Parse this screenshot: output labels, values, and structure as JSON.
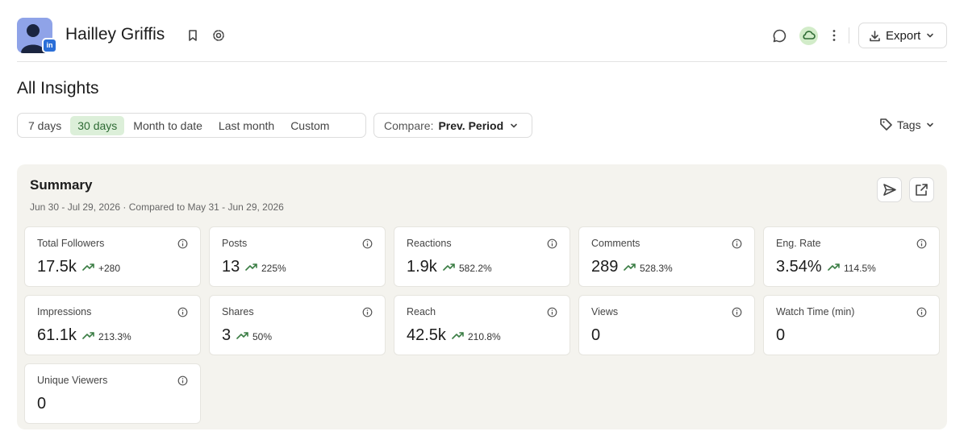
{
  "header": {
    "name": "Hailley Griffis",
    "export_label": "Export"
  },
  "page": {
    "title": "All Insights"
  },
  "filters": {
    "periods": [
      "7 days",
      "30 days",
      "Month to date",
      "Last month",
      "Custom"
    ],
    "selected": 1,
    "compare_label": "Compare:",
    "compare_value": "Prev. Period",
    "tags_label": "Tags"
  },
  "summary": {
    "title": "Summary",
    "date_range": "Jun 30 - Jul 29, 2026 · Compared to May 31 - Jun 29, 2026",
    "metrics": [
      {
        "label": "Total Followers",
        "value": "17.5k",
        "change": "+280"
      },
      {
        "label": "Posts",
        "value": "13",
        "change": "225%"
      },
      {
        "label": "Reactions",
        "value": "1.9k",
        "change": "582.2%"
      },
      {
        "label": "Comments",
        "value": "289",
        "change": "528.3%"
      },
      {
        "label": "Eng. Rate",
        "value": "3.54%",
        "change": "114.5%"
      },
      {
        "label": "Impressions",
        "value": "61.1k",
        "change": "213.3%"
      },
      {
        "label": "Shares",
        "value": "3",
        "change": "50%"
      },
      {
        "label": "Reach",
        "value": "42.5k",
        "change": "210.8%"
      },
      {
        "label": "Views",
        "value": "0"
      },
      {
        "label": "Watch Time (min)",
        "value": "0"
      },
      {
        "label": "Unique Viewers",
        "value": "0"
      }
    ]
  }
}
